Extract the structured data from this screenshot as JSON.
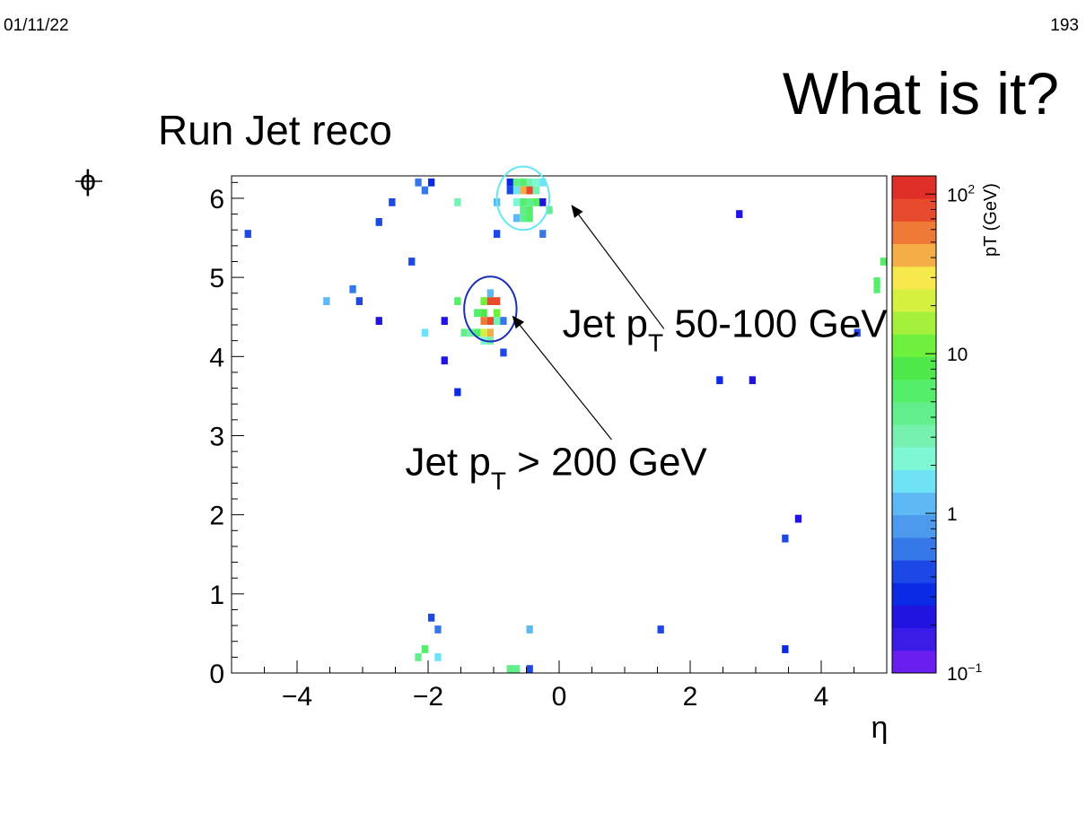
{
  "header": {
    "date": "01/11/22",
    "page_number": "193"
  },
  "slide_title": "What is it?",
  "chart_data": {
    "type": "heatmap",
    "title": "Run Jet reco",
    "xlabel": "η",
    "ylabel": "ϕ",
    "xlim": [
      -5,
      5
    ],
    "ylim": [
      0,
      6.283
    ],
    "x_ticks": [
      {
        "v": -4,
        "label": "−4"
      },
      {
        "v": -2,
        "label": "−2"
      },
      {
        "v": 0,
        "label": "0"
      },
      {
        "v": 2,
        "label": "2"
      },
      {
        "v": 4,
        "label": "4"
      }
    ],
    "y_ticks": [
      {
        "v": 0,
        "label": "0"
      },
      {
        "v": 1,
        "label": "1"
      },
      {
        "v": 2,
        "label": "2"
      },
      {
        "v": 3,
        "label": "3"
      },
      {
        "v": 4,
        "label": "4"
      },
      {
        "v": 5,
        "label": "5"
      },
      {
        "v": 6,
        "label": "6"
      }
    ],
    "bin_width": [
      0.1,
      0.1
    ],
    "colorbar": {
      "label": "pT (GeV)",
      "scale": "log",
      "range": [
        0.1,
        130
      ],
      "tick_labels": [
        {
          "base": "10",
          "exp": "−1",
          "v": 0.1
        },
        {
          "base": "1",
          "exp": "",
          "v": 1
        },
        {
          "base": "10",
          "exp": "",
          "v": 10
        },
        {
          "base": "10",
          "exp": "2",
          "v": 100
        }
      ],
      "palette": [
        "#6a1ff0",
        "#3b1be8",
        "#2114e0",
        "#0a2ae6",
        "#1d48e8",
        "#3678ea",
        "#4b9aee",
        "#5db8f3",
        "#6fe2f5",
        "#7ef7d4",
        "#77f1b0",
        "#62ee8c",
        "#55ee6a",
        "#4fe84a",
        "#6ef03d",
        "#a4f03c",
        "#d7f040",
        "#f7e84d",
        "#f5ad47",
        "#ef7a37",
        "#e84a2d",
        "#e02f28"
      ]
    },
    "annotations": [
      {
        "type": "ellipse",
        "center": [
          -0.55,
          6.0
        ],
        "radius": [
          0.4,
          0.4
        ],
        "color": "#66e6f2"
      },
      {
        "type": "ellipse",
        "center": [
          -1.05,
          4.6
        ],
        "radius": [
          0.4,
          0.41
        ],
        "color": "#1a2fb5"
      },
      {
        "type": "arrow",
        "from": [
          1.6,
          4.35
        ],
        "to": [
          0.2,
          5.9
        ]
      },
      {
        "type": "arrow",
        "from": [
          0.8,
          2.95
        ],
        "to": [
          -0.7,
          4.5
        ]
      },
      {
        "type": "text",
        "text": "Jet p",
        "sub": "T",
        "rest": "  50-100 GeV",
        "at": [
          0.05,
          4.25
        ]
      },
      {
        "type": "text",
        "text": "Jet p",
        "sub": "T",
        "rest": " > 200 GeV",
        "at": [
          -2.35,
          2.5
        ]
      }
    ],
    "points": [
      [
        -4.75,
        5.55,
        0.4
      ],
      [
        -3.55,
        4.7,
        1.3
      ],
      [
        -3.15,
        4.85,
        0.7
      ],
      [
        -3.05,
        4.7,
        0.5
      ],
      [
        -2.75,
        5.7,
        0.4
      ],
      [
        -2.75,
        4.45,
        0.2
      ],
      [
        -2.55,
        5.95,
        0.5
      ],
      [
        -2.25,
        5.2,
        0.5
      ],
      [
        -2.15,
        6.2,
        0.6
      ],
      [
        -2.05,
        6.1,
        0.7
      ],
      [
        -1.95,
        6.2,
        0.3
      ],
      [
        -2.05,
        4.3,
        1.5
      ],
      [
        -1.75,
        4.45,
        0.2
      ],
      [
        -1.75,
        3.95,
        0.2
      ],
      [
        -1.55,
        3.55,
        0.3
      ],
      [
        -1.55,
        5.95,
        3
      ],
      [
        -0.95,
        5.95,
        1.3
      ],
      [
        -0.95,
        5.55,
        0.5
      ],
      [
        -1.55,
        4.7,
        5
      ],
      [
        -1.45,
        4.3,
        4
      ],
      [
        -1.35,
        4.3,
        3
      ],
      [
        -1.25,
        4.55,
        6
      ],
      [
        -1.25,
        4.3,
        5
      ],
      [
        -1.15,
        4.7,
        10
      ],
      [
        -1.15,
        4.55,
        8
      ],
      [
        -1.15,
        4.45,
        60
      ],
      [
        -1.15,
        4.3,
        20
      ],
      [
        -1.15,
        4.2,
        2.5
      ],
      [
        -1.05,
        4.8,
        1.2
      ],
      [
        -1.05,
        4.7,
        80
      ],
      [
        -1.05,
        4.45,
        90
      ],
      [
        -1.05,
        4.3,
        40
      ],
      [
        -1.05,
        4.2,
        3
      ],
      [
        -0.95,
        4.7,
        80
      ],
      [
        -0.95,
        4.55,
        12
      ],
      [
        -0.95,
        4.45,
        3
      ],
      [
        -0.85,
        4.45,
        0.6
      ],
      [
        -0.85,
        4.05,
        0.5
      ],
      [
        -0.75,
        6.2,
        0.3
      ],
      [
        -0.75,
        6.1,
        0.4
      ],
      [
        -0.65,
        6.2,
        4
      ],
      [
        -0.65,
        6.1,
        1.5
      ],
      [
        -0.65,
        5.95,
        2.5
      ],
      [
        -0.65,
        5.75,
        1.2
      ],
      [
        -0.55,
        6.2,
        5
      ],
      [
        -0.55,
        6.1,
        40
      ],
      [
        -0.55,
        5.95,
        5
      ],
      [
        -0.55,
        5.85,
        4
      ],
      [
        -0.55,
        5.75,
        4
      ],
      [
        -0.45,
        6.2,
        3
      ],
      [
        -0.45,
        6.1,
        80
      ],
      [
        -0.45,
        5.95,
        4
      ],
      [
        -0.45,
        5.85,
        6
      ],
      [
        -0.45,
        5.75,
        5
      ],
      [
        -0.35,
        6.2,
        2
      ],
      [
        -0.35,
        6.1,
        3
      ],
      [
        -0.35,
        5.95,
        5
      ],
      [
        -0.25,
        6.2,
        1.5
      ],
      [
        -0.25,
        5.95,
        0.2
      ],
      [
        -0.25,
        5.55,
        0.6
      ],
      [
        -0.15,
        5.85,
        4
      ],
      [
        2.75,
        5.8,
        0.2
      ],
      [
        4.55,
        4.3,
        0.5
      ],
      [
        4.85,
        4.95,
        5
      ],
      [
        4.85,
        4.85,
        5
      ],
      [
        4.95,
        5.2,
        5
      ],
      [
        2.45,
        3.7,
        0.3
      ],
      [
        2.95,
        3.7,
        0.2
      ],
      [
        3.65,
        1.95,
        0.2
      ],
      [
        3.45,
        1.7,
        0.4
      ],
      [
        -1.95,
        0.7,
        0.4
      ],
      [
        -1.85,
        0.55,
        0.6
      ],
      [
        -0.45,
        0.55,
        1.2
      ],
      [
        1.55,
        0.55,
        0.5
      ],
      [
        -2.05,
        0.3,
        5
      ],
      [
        -2.15,
        0.2,
        4
      ],
      [
        -1.85,
        0.2,
        1.5
      ],
      [
        -0.75,
        0.05,
        4
      ],
      [
        -0.65,
        0.05,
        4
      ],
      [
        -0.45,
        0.05,
        0.4
      ],
      [
        3.45,
        0.3,
        0.3
      ]
    ]
  }
}
